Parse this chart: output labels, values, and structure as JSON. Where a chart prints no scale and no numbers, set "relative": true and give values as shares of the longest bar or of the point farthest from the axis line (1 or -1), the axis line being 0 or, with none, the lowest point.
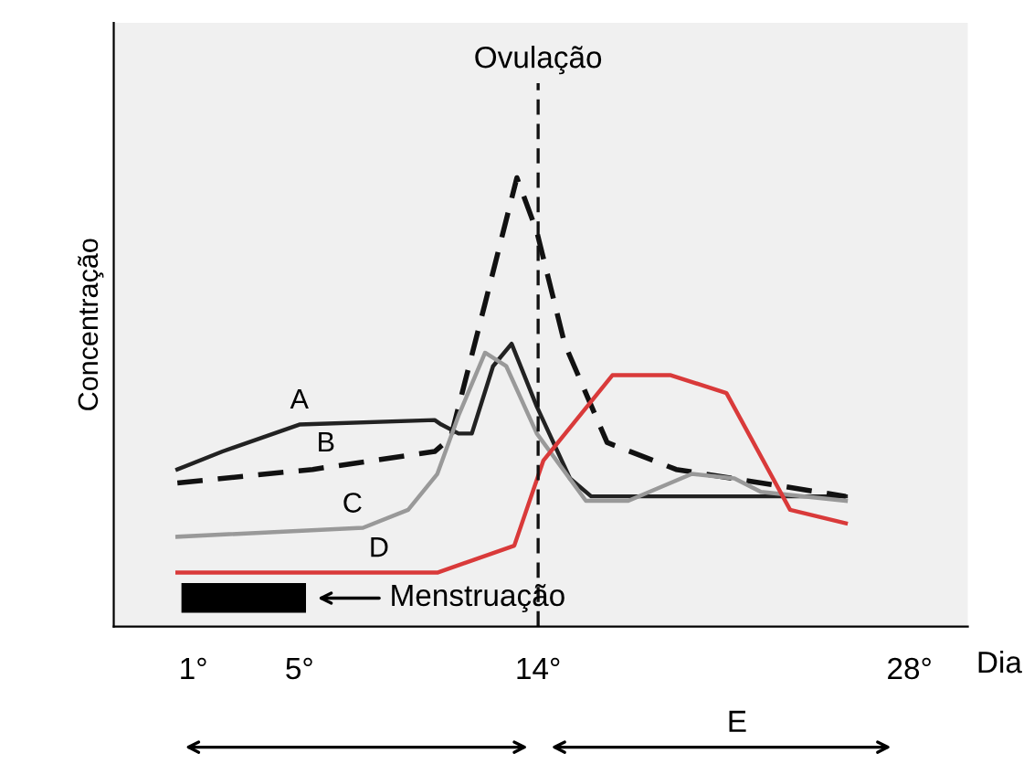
{
  "chart_data": {
    "type": "line",
    "relative": true,
    "xlabel": "Dia",
    "ylabel": "Concentração",
    "xlim": [
      -2,
      30.2
    ],
    "xticks": [
      {
        "value": 1,
        "label": "1°"
      },
      {
        "value": 5,
        "label": "5°"
      },
      {
        "value": 14,
        "label": "14°"
      },
      {
        "value": 28,
        "label": "28°"
      }
    ],
    "series": [
      {
        "name": "A",
        "color": "#222222",
        "line_style": "solid",
        "x": [
          0.4,
          2.1,
          5,
          10.1,
          10.35,
          11.0,
          11.5,
          12.3,
          13.0,
          13.95,
          15.2,
          16.0,
          25.6
        ],
        "values": [
          0.35,
          0.39,
          0.45,
          0.46,
          0.45,
          0.43,
          0.43,
          0.58,
          0.63,
          0.49,
          0.33,
          0.29,
          0.29
        ]
      },
      {
        "name": "B",
        "color": "#111111",
        "line_style": "dashed",
        "x": [
          0.4,
          5.5,
          10.1,
          10.7,
          12.0,
          13.2,
          13.95,
          15.0,
          16.6,
          19.2,
          25.6
        ],
        "values": [
          0.32,
          0.35,
          0.39,
          0.42,
          0.72,
          1,
          0.88,
          0.63,
          0.41,
          0.35,
          0.29
        ]
      },
      {
        "name": "C",
        "color": "#999999",
        "line_style": "solid",
        "x": [
          0.4,
          7.4,
          9.1,
          10.2,
          11.0,
          12.0,
          12.8,
          13.95,
          15.8,
          17.4,
          19.8,
          21.4,
          22.4,
          25.6
        ],
        "values": [
          0.2,
          0.22,
          0.26,
          0.34,
          0.47,
          0.61,
          0.58,
          0.43,
          0.28,
          0.28,
          0.34,
          0.33,
          0.3,
          0.28
        ]
      },
      {
        "name": "D",
        "color": "#d93a3a",
        "line_style": "solid",
        "x": [
          0.4,
          10.2,
          13.1,
          14.2,
          16.8,
          19.0,
          21.1,
          23.5,
          25.6
        ],
        "values": [
          0.12,
          0.12,
          0.18,
          0.37,
          0.56,
          0.56,
          0.52,
          0.26,
          0.23
        ]
      }
    ],
    "ref_lines": [
      {
        "axis": "x",
        "value": 14,
        "label": "Ovulação",
        "color": "#111111",
        "line_style": "dashed"
      }
    ],
    "annotations": [
      "Menstruação",
      "E"
    ],
    "grid": false
  }
}
